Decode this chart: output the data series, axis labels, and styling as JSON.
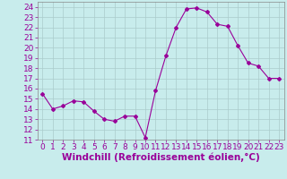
{
  "x": [
    0,
    1,
    2,
    3,
    4,
    5,
    6,
    7,
    8,
    9,
    10,
    11,
    12,
    13,
    14,
    15,
    16,
    17,
    18,
    19,
    20,
    21,
    22,
    23
  ],
  "y": [
    15.5,
    14.0,
    14.3,
    14.8,
    14.7,
    13.8,
    13.0,
    12.8,
    13.3,
    13.3,
    11.2,
    15.8,
    19.2,
    22.0,
    23.8,
    23.9,
    23.5,
    22.3,
    22.1,
    20.2,
    18.5,
    18.2,
    17.0,
    17.0
  ],
  "line_color": "#990099",
  "marker": "D",
  "marker_size": 2.0,
  "bg_color": "#c8ecec",
  "grid_color": "#aacccc",
  "xlabel": "Windchill (Refroidissement éolien,°C)",
  "xlabel_color": "#990099",
  "xlabel_fontsize": 7.5,
  "tick_color": "#990099",
  "tick_fontsize": 6.5,
  "ylim": [
    11,
    24.5
  ],
  "xlim": [
    -0.5,
    23.5
  ],
  "yticks": [
    11,
    12,
    13,
    14,
    15,
    16,
    17,
    18,
    19,
    20,
    21,
    22,
    23,
    24
  ],
  "xticks": [
    0,
    1,
    2,
    3,
    4,
    5,
    6,
    7,
    8,
    9,
    10,
    11,
    12,
    13,
    14,
    15,
    16,
    17,
    18,
    19,
    20,
    21,
    22,
    23
  ]
}
